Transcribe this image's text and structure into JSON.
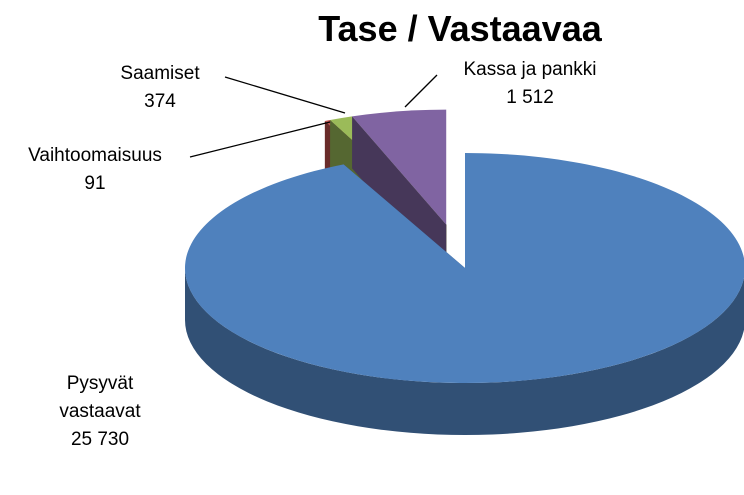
{
  "chart_data": {
    "type": "pie",
    "title": "Tase / Vastaavaa",
    "categories": [
      "Pysyvät vastaavat",
      "Vaihtoomaisuus",
      "Saamiset",
      "Kassa ja pankki"
    ],
    "values": [
      25730,
      91,
      374,
      1512
    ],
    "value_labels": [
      "25 730",
      "91",
      "374",
      "1 512"
    ],
    "colors": [
      "#4f81bd",
      "#c0504d",
      "#9bbb59",
      "#8064a2"
    ]
  }
}
